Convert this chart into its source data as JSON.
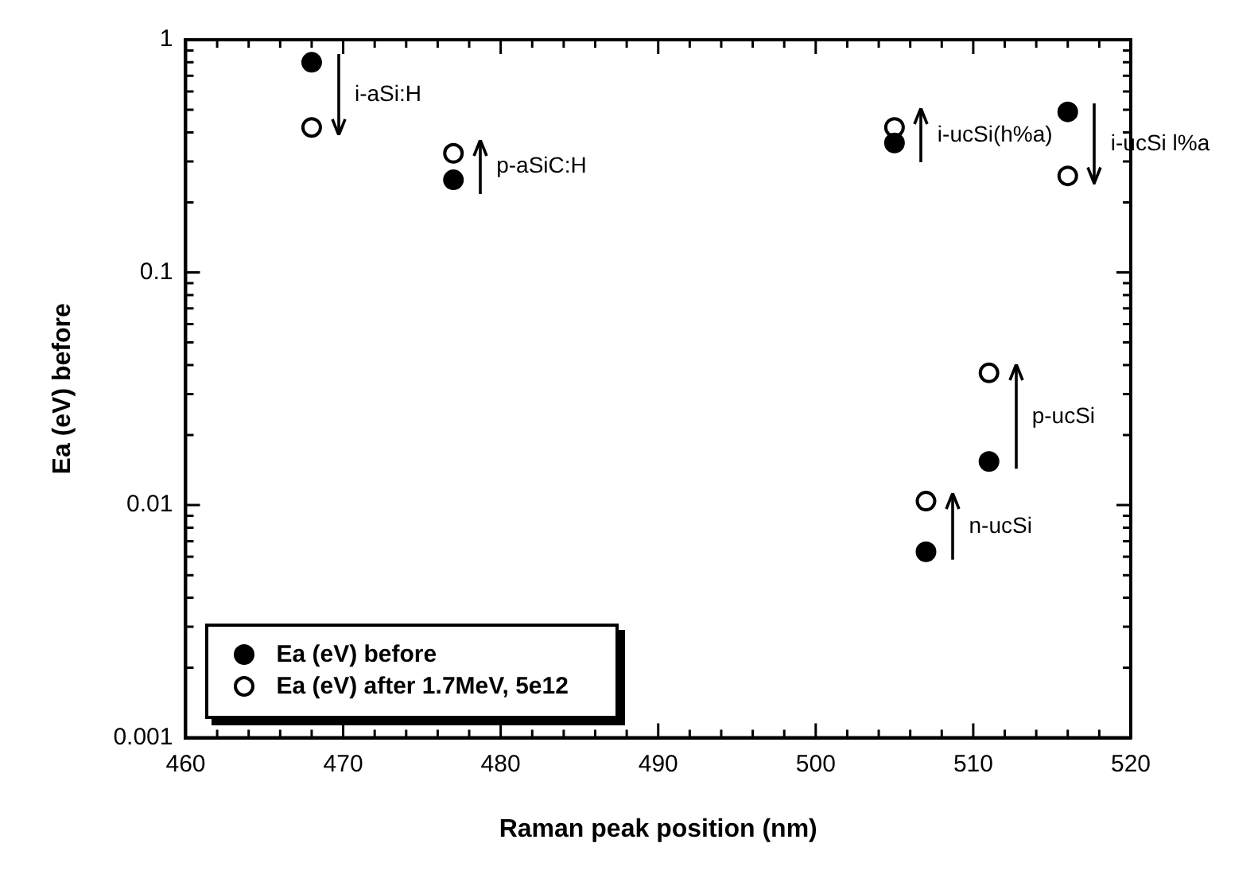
{
  "chart_data": {
    "type": "scatter",
    "xlabel": "Raman peak position (nm)",
    "ylabel": "Ea (eV) before",
    "x": [
      468,
      477,
      505,
      516,
      511,
      507
    ],
    "series": [
      {
        "name": "Ea (eV) before",
        "color": "#000000",
        "values": [
          0.8,
          0.25,
          0.36,
          0.49,
          0.0154,
          0.0063
        ]
      },
      {
        "name": "Ea (eV) after 1.7MeV, 5e12",
        "color": "#000000",
        "values": [
          0.42,
          0.325,
          0.42,
          0.26,
          0.037,
          0.0104
        ]
      }
    ],
    "xlim": [
      460,
      520
    ],
    "xticks": [
      460,
      {
        "value": 462,
        "label": null
      },
      {
        "value": 464,
        "label": null
      },
      {
        "value": 466,
        "label": null
      },
      {
        "value": 468,
        "label": null
      },
      470,
      {
        "value": 472,
        "label": null
      },
      {
        "value": 474,
        "label": null
      },
      {
        "value": 476,
        "label": null
      },
      {
        "value": 478,
        "label": null
      },
      480,
      {
        "value": 482,
        "label": null
      },
      {
        "value": 484,
        "label": null
      },
      {
        "value": 486,
        "label": null
      },
      {
        "value": 488,
        "label": null
      },
      490,
      {
        "value": 492,
        "label": null
      },
      {
        "value": 494,
        "label": null
      },
      {
        "value": 496,
        "label": null
      },
      {
        "value": 498,
        "label": null
      },
      500,
      {
        "value": 502,
        "label": null
      },
      {
        "value": 504,
        "label": null
      },
      {
        "value": 506,
        "label": null
      },
      {
        "value": 508,
        "label": null
      },
      510,
      {
        "value": 512,
        "label": null
      },
      {
        "value": 514,
        "label": null
      },
      {
        "value": 516,
        "label": null
      },
      {
        "value": 518,
        "label": null
      },
      520
    ],
    "ylim": [
      0.001,
      1
    ],
    "yticks": [
      0.001,
      {
        "value": 0.002,
        "label": null
      },
      {
        "value": 0.003,
        "label": null
      },
      {
        "value": 0.004,
        "label": null
      },
      {
        "value": 0.005,
        "label": null
      },
      {
        "value": 0.006,
        "label": null
      },
      {
        "value": 0.007,
        "label": null
      },
      {
        "value": 0.008,
        "label": null
      },
      {
        "value": 0.009,
        "label": null
      },
      0.01,
      {
        "value": 0.02,
        "label": null
      },
      {
        "value": 0.03,
        "label": null
      },
      {
        "value": 0.04,
        "label": null
      },
      {
        "value": 0.05,
        "label": null
      },
      {
        "value": 0.06,
        "label": null
      },
      {
        "value": 0.07,
        "label": null
      },
      {
        "value": 0.08,
        "label": null
      },
      {
        "value": 0.09,
        "label": null
      },
      0.1,
      {
        "value": 0.2,
        "label": null
      },
      {
        "value": 0.3,
        "label": null
      },
      {
        "value": 0.4,
        "label": null
      },
      {
        "value": 0.5,
        "label": null
      },
      {
        "value": 0.6,
        "label": null
      },
      {
        "value": 0.7,
        "label": null
      },
      {
        "value": 0.8,
        "label": null
      },
      {
        "value": 0.9,
        "label": null
      },
      1
    ],
    "log": "y",
    "grid": false,
    "legend": "bottom left",
    "marker": "circle",
    "annotations": [
      "i-aSi:H",
      "p-aSiC:H",
      "i-ucSi(h%a)",
      "i-ucSi l%a",
      "p-ucSi",
      "n-ucSi"
    ]
  }
}
